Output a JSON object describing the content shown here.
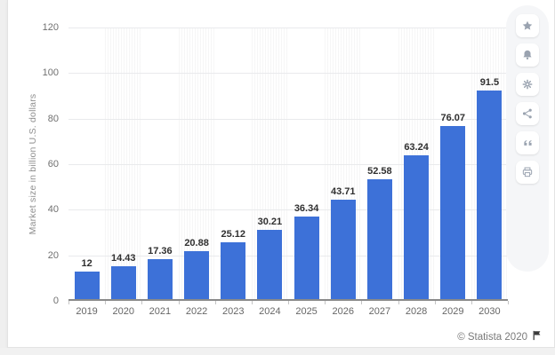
{
  "chart_data": {
    "type": "bar",
    "categories": [
      "2019",
      "2020",
      "2021",
      "2022",
      "2023",
      "2024",
      "2025",
      "2026",
      "2027",
      "2028",
      "2029",
      "2030"
    ],
    "values": [
      12,
      14.43,
      17.36,
      20.88,
      25.12,
      30.21,
      36.34,
      43.71,
      52.58,
      63.24,
      76.07,
      91.5
    ],
    "value_labels": [
      "12",
      "14.43",
      "17.36",
      "20.88",
      "25.12",
      "30.21",
      "36.34",
      "43.71",
      "52.58",
      "63.24",
      "76.07",
      "91.5"
    ],
    "title": "",
    "xlabel": "",
    "ylabel": "Market size in billion U.S. dollars",
    "ylim": [
      0,
      120
    ],
    "yticks": [
      0,
      20,
      40,
      60,
      80,
      100,
      120
    ],
    "grid": true,
    "legend": "none",
    "bar_color": "#3d71d8",
    "hatched_band_columns": [
      "2020",
      "2022",
      "2024",
      "2026",
      "2028",
      "2030"
    ]
  },
  "toolbar": {
    "buttons": [
      {
        "name": "favorite-button",
        "icon": "star-icon"
      },
      {
        "name": "alert-button",
        "icon": "bell-icon"
      },
      {
        "name": "settings-button",
        "icon": "gear-icon"
      },
      {
        "name": "share-button",
        "icon": "share-icon"
      },
      {
        "name": "cite-button",
        "icon": "quote-icon"
      },
      {
        "name": "print-button",
        "icon": "print-icon"
      }
    ]
  },
  "footer": {
    "copyright": "© Statista 2020",
    "flag": "flag-icon"
  }
}
